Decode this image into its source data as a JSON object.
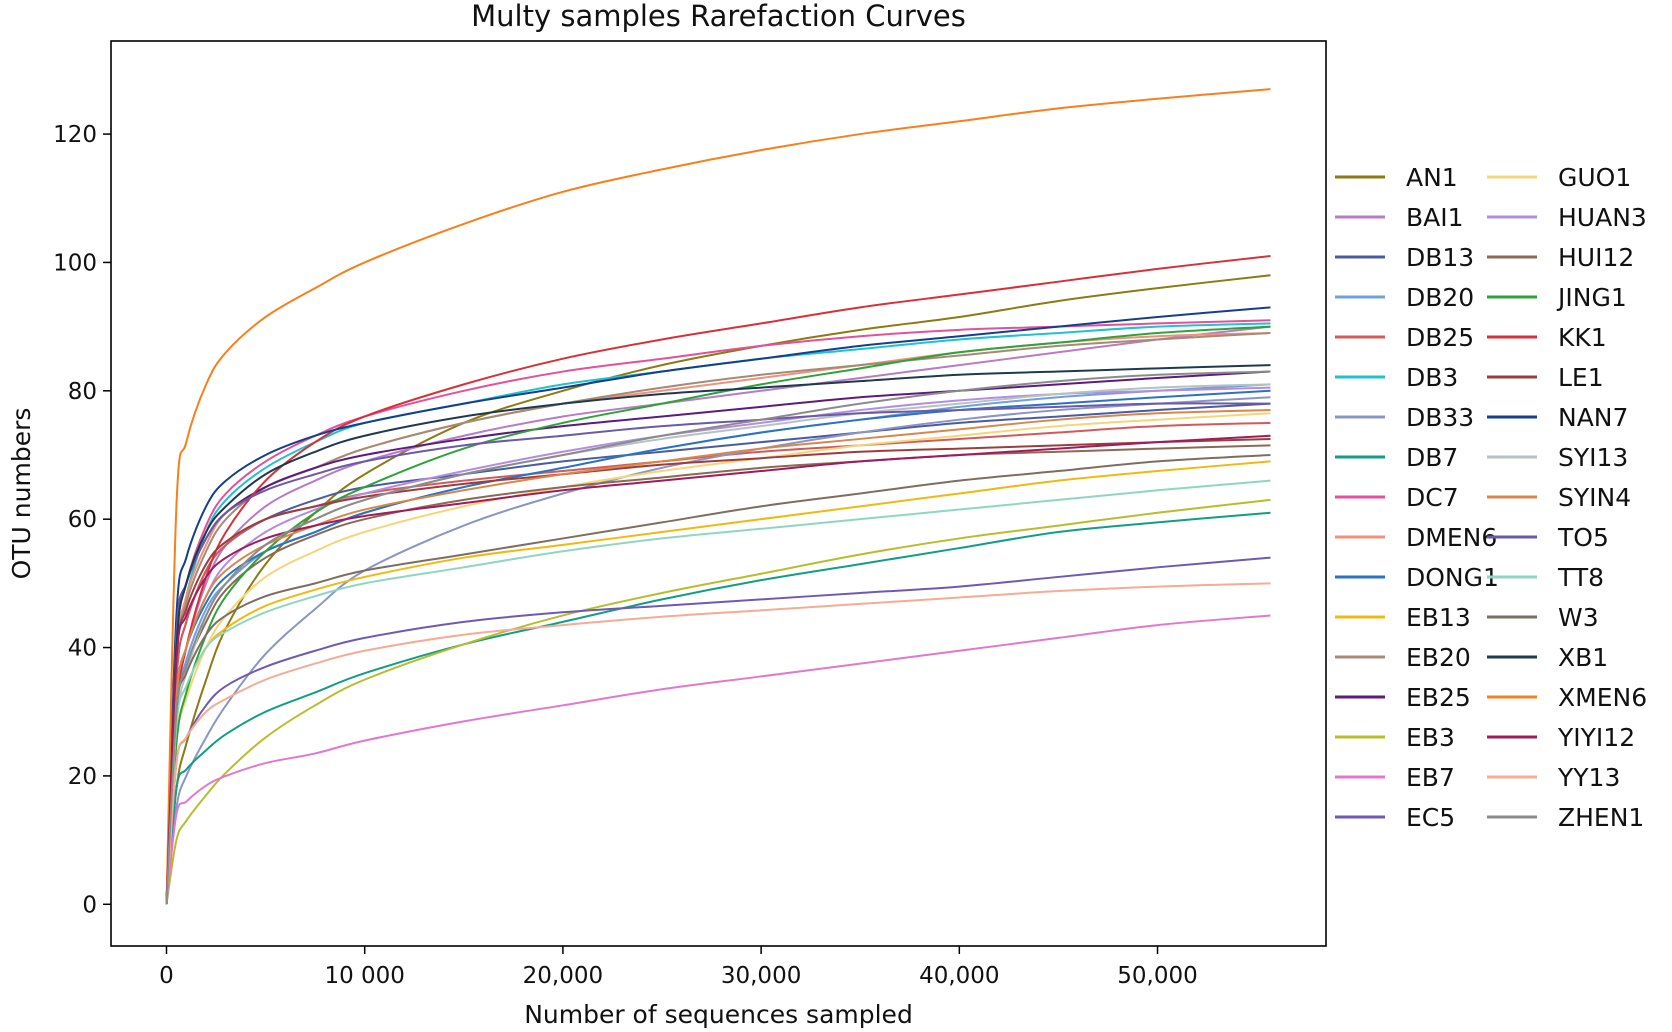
{
  "chart_data": {
    "type": "line",
    "title": "Multy samples Rarefaction Curves",
    "xlabel": "Number of sequences sampled",
    "ylabel": "OTU numbers",
    "xlim": [
      -2800,
      58500
    ],
    "ylim": [
      -6.5,
      134.5
    ],
    "x_ticks": [
      {
        "value": 0,
        "label": "0"
      },
      {
        "value": 10000,
        "label": "10 000"
      },
      {
        "value": 20000,
        "label": "20,000"
      },
      {
        "value": 30000,
        "label": "30,000"
      },
      {
        "value": 40000,
        "label": "40,000"
      },
      {
        "value": 50000,
        "label": "50,000"
      }
    ],
    "y_ticks": [
      {
        "value": 0,
        "label": "0"
      },
      {
        "value": 20,
        "label": "20"
      },
      {
        "value": 40,
        "label": "40"
      },
      {
        "value": 60,
        "label": "60"
      },
      {
        "value": 80,
        "label": "80"
      },
      {
        "value": 100,
        "label": "100"
      },
      {
        "value": 120,
        "label": "120"
      }
    ],
    "grid": false,
    "legend_position": "right",
    "x": [
      0,
      500,
      1000,
      2000,
      3000,
      5000,
      7500,
      10000,
      15000,
      20000,
      25000,
      30000,
      35000,
      40000,
      45000,
      50000,
      55700
    ],
    "series": [
      {
        "name": "AN1",
        "color": "#8c7a13",
        "values": [
          0,
          18,
          25,
          35,
          43,
          53,
          61,
          67,
          75,
          80,
          84,
          87,
          89.5,
          91.5,
          94,
          96,
          98
        ]
      },
      {
        "name": "BAI1",
        "color": "#b87bc6",
        "values": [
          0,
          30,
          40,
          50,
          56,
          62,
          66,
          69,
          73,
          76,
          78,
          80,
          82,
          84,
          86,
          88,
          90
        ]
      },
      {
        "name": "DB13",
        "color": "#4a5c9e",
        "values": [
          0,
          35,
          44,
          52,
          56,
          60,
          63,
          65,
          67,
          69,
          70.5,
          72,
          73.5,
          75,
          76,
          77,
          78
        ]
      },
      {
        "name": "DB20",
        "color": "#6f9fdc",
        "values": [
          0,
          30,
          38,
          46,
          50,
          55,
          58,
          61,
          65,
          68,
          71,
          73.5,
          75.5,
          77.5,
          79,
          80,
          81
        ]
      },
      {
        "name": "DB25",
        "color": "#d45a5a",
        "values": [
          0,
          35,
          44,
          52,
          56,
          60,
          62,
          64,
          66,
          67.5,
          69,
          70.5,
          71.5,
          72.5,
          73.5,
          74.5,
          75
        ]
      },
      {
        "name": "DB3",
        "color": "#1fc2cf",
        "values": [
          0,
          38,
          48,
          58,
          63,
          68,
          72,
          75,
          78,
          81,
          83,
          85,
          86.5,
          88,
          89,
          90,
          90.5
        ]
      },
      {
        "name": "DB33",
        "color": "#8a95c3",
        "values": [
          0,
          15,
          20,
          26,
          31,
          39,
          46,
          52,
          59,
          64,
          68,
          71,
          73.5,
          75.5,
          77,
          78,
          79
        ]
      },
      {
        "name": "DB7",
        "color": "#129e86",
        "values": [
          0,
          18,
          21,
          24,
          26.5,
          30,
          33,
          36,
          40.5,
          44,
          47.5,
          50.5,
          53,
          55.5,
          58,
          59.5,
          61
        ]
      },
      {
        "name": "DC7",
        "color": "#e4509a",
        "values": [
          0,
          40,
          50,
          59,
          64,
          69,
          73,
          76,
          80,
          83,
          85,
          87,
          88.5,
          89.5,
          90,
          90.5,
          91
        ]
      },
      {
        "name": "DMEN6",
        "color": "#f0907e",
        "values": [
          0,
          38,
          48,
          56,
          61,
          65,
          68,
          71,
          75,
          78,
          80,
          82,
          84,
          86,
          87.5,
          88.5,
          89
        ]
      },
      {
        "name": "DONG1",
        "color": "#2a73c3",
        "values": [
          0,
          32,
          40,
          47,
          51,
          55,
          58,
          61,
          65,
          68,
          71,
          73.5,
          75.5,
          77,
          78,
          79,
          80
        ]
      },
      {
        "name": "EB13",
        "color": "#f0b90f",
        "values": [
          0,
          28,
          34,
          40,
          43,
          46.5,
          49,
          51,
          54,
          56,
          58,
          60,
          62,
          64,
          66,
          67.5,
          69
        ]
      },
      {
        "name": "EB20",
        "color": "#a58a75",
        "values": [
          0,
          38,
          47,
          55,
          60,
          65,
          68,
          71,
          75,
          78,
          80.5,
          82.5,
          84,
          85.5,
          87,
          88,
          89
        ]
      },
      {
        "name": "EB25",
        "color": "#5c1b7d",
        "values": [
          0,
          42,
          50,
          57,
          61,
          65,
          68,
          70,
          72.5,
          74.5,
          76,
          77.5,
          79,
          80,
          81,
          82,
          83
        ]
      },
      {
        "name": "EB3",
        "color": "#b8bd2c",
        "values": [
          0,
          10,
          13,
          17,
          20.5,
          26,
          31,
          35,
          40.5,
          45,
          48.5,
          51.5,
          54.5,
          57,
          59,
          61,
          63
        ]
      },
      {
        "name": "EB7",
        "color": "#e277d0",
        "values": [
          0,
          14,
          16,
          18.5,
          20,
          22,
          23.5,
          25.5,
          28.5,
          31,
          33.5,
          35.5,
          37.5,
          39.5,
          41.5,
          43.5,
          45
        ]
      },
      {
        "name": "EC5",
        "color": "#6e5ab5",
        "values": [
          0,
          22,
          26,
          31,
          34,
          37,
          39.5,
          41.5,
          44,
          45.5,
          46.5,
          47.5,
          48.5,
          49.5,
          51,
          52.5,
          54
        ]
      },
      {
        "name": "GUO1",
        "color": "#f4d67a",
        "values": [
          0,
          25,
          32,
          40,
          45,
          51,
          55,
          58,
          62,
          65,
          67.5,
          69.5,
          71.5,
          73,
          74.5,
          75.5,
          76.5
        ]
      },
      {
        "name": "HUAN3",
        "color": "#b48de0",
        "values": [
          0,
          32,
          40,
          48,
          53,
          58,
          61.5,
          64,
          67.5,
          70.5,
          73,
          75,
          77,
          78.5,
          79.5,
          80,
          80.5
        ]
      },
      {
        "name": "HUI12",
        "color": "#8b6a54",
        "values": [
          0,
          30,
          37,
          44,
          49,
          54,
          57.5,
          60,
          63,
          65,
          66.5,
          68,
          69,
          70,
          70.5,
          71,
          71.5
        ]
      },
      {
        "name": "JING1",
        "color": "#2ea33a",
        "values": [
          0,
          25,
          33,
          42,
          48,
          55,
          61,
          65,
          71,
          75,
          78,
          81,
          83.5,
          86,
          87.5,
          89,
          90
        ]
      },
      {
        "name": "KK1",
        "color": "#d7303b",
        "values": [
          0,
          30,
          40,
          51,
          58,
          66,
          72,
          76,
          81,
          85,
          88,
          90.5,
          93,
          95,
          97,
          99,
          101
        ]
      },
      {
        "name": "LE1",
        "color": "#9c3d3d",
        "values": [
          0,
          38,
          46,
          53,
          56.5,
          60,
          62,
          63.5,
          65.5,
          67,
          68.5,
          69.5,
          70.5,
          71,
          71.5,
          72,
          72.5
        ]
      },
      {
        "name": "NAN7",
        "color": "#153f8a",
        "values": [
          0,
          45,
          54,
          62,
          66,
          70,
          73,
          75,
          78,
          80.5,
          83,
          85,
          87,
          88.5,
          90,
          91.5,
          93
        ]
      },
      {
        "name": "SYI13",
        "color": "#b4c2c4",
        "values": [
          0,
          28,
          36,
          45,
          50,
          56,
          60,
          63,
          67,
          70,
          72.5,
          74.5,
          76.5,
          78,
          79.5,
          80.5,
          81
        ]
      },
      {
        "name": "SYIN4",
        "color": "#d8874b",
        "values": [
          0,
          32,
          40,
          48,
          52,
          56,
          59,
          61.5,
          64.5,
          67,
          69,
          71,
          72.5,
          74,
          75.5,
          76.5,
          77
        ]
      },
      {
        "name": "TO5",
        "color": "#6b5aa8",
        "values": [
          0,
          42,
          50,
          57,
          61,
          64.5,
          67,
          69,
          71.5,
          73,
          74.5,
          75.5,
          76.5,
          77,
          77.5,
          78,
          78
        ]
      },
      {
        "name": "TT8",
        "color": "#8fd6c2",
        "values": [
          0,
          28,
          34,
          40,
          42.5,
          45.5,
          48,
          50,
          52.5,
          55,
          57,
          58.5,
          60,
          61.5,
          63,
          64.5,
          66
        ]
      },
      {
        "name": "W3",
        "color": "#7e6e62",
        "values": [
          0,
          30,
          36,
          42,
          45,
          48,
          50,
          52,
          54.5,
          57,
          59.5,
          62,
          64,
          66,
          67.5,
          69,
          70
        ]
      },
      {
        "name": "XB1",
        "color": "#1e3a4d",
        "values": [
          0,
          40,
          50,
          58,
          62,
          67,
          70.5,
          73,
          76,
          78,
          79.5,
          80.5,
          81.5,
          82.5,
          83,
          83.5,
          84
        ]
      },
      {
        "name": "XMEN6",
        "color": "#f7801c",
        "values": [
          0,
          62,
          72,
          81,
          86,
          91.5,
          96,
          100,
          106,
          111,
          114.5,
          117.5,
          120,
          122,
          124,
          125.5,
          127
        ]
      },
      {
        "name": "YIYI12",
        "color": "#a01c5c",
        "values": [
          0,
          38,
          45,
          51,
          54,
          57,
          59,
          60.5,
          62.5,
          64.5,
          66,
          67.5,
          69,
          70,
          71,
          72,
          73
        ]
      },
      {
        "name": "YY13",
        "color": "#f5ab94",
        "values": [
          0,
          22,
          26,
          30,
          32,
          35,
          37.5,
          39.5,
          42,
          43.5,
          44.8,
          45.8,
          46.8,
          47.8,
          48.8,
          49.5,
          50
        ]
      },
      {
        "name": "ZHEN1",
        "color": "#8b8b8b",
        "values": [
          0,
          30,
          37,
          45,
          50,
          56,
          60,
          63,
          67,
          70,
          73,
          75.5,
          78,
          80,
          81.5,
          82.5,
          83
        ]
      }
    ]
  }
}
